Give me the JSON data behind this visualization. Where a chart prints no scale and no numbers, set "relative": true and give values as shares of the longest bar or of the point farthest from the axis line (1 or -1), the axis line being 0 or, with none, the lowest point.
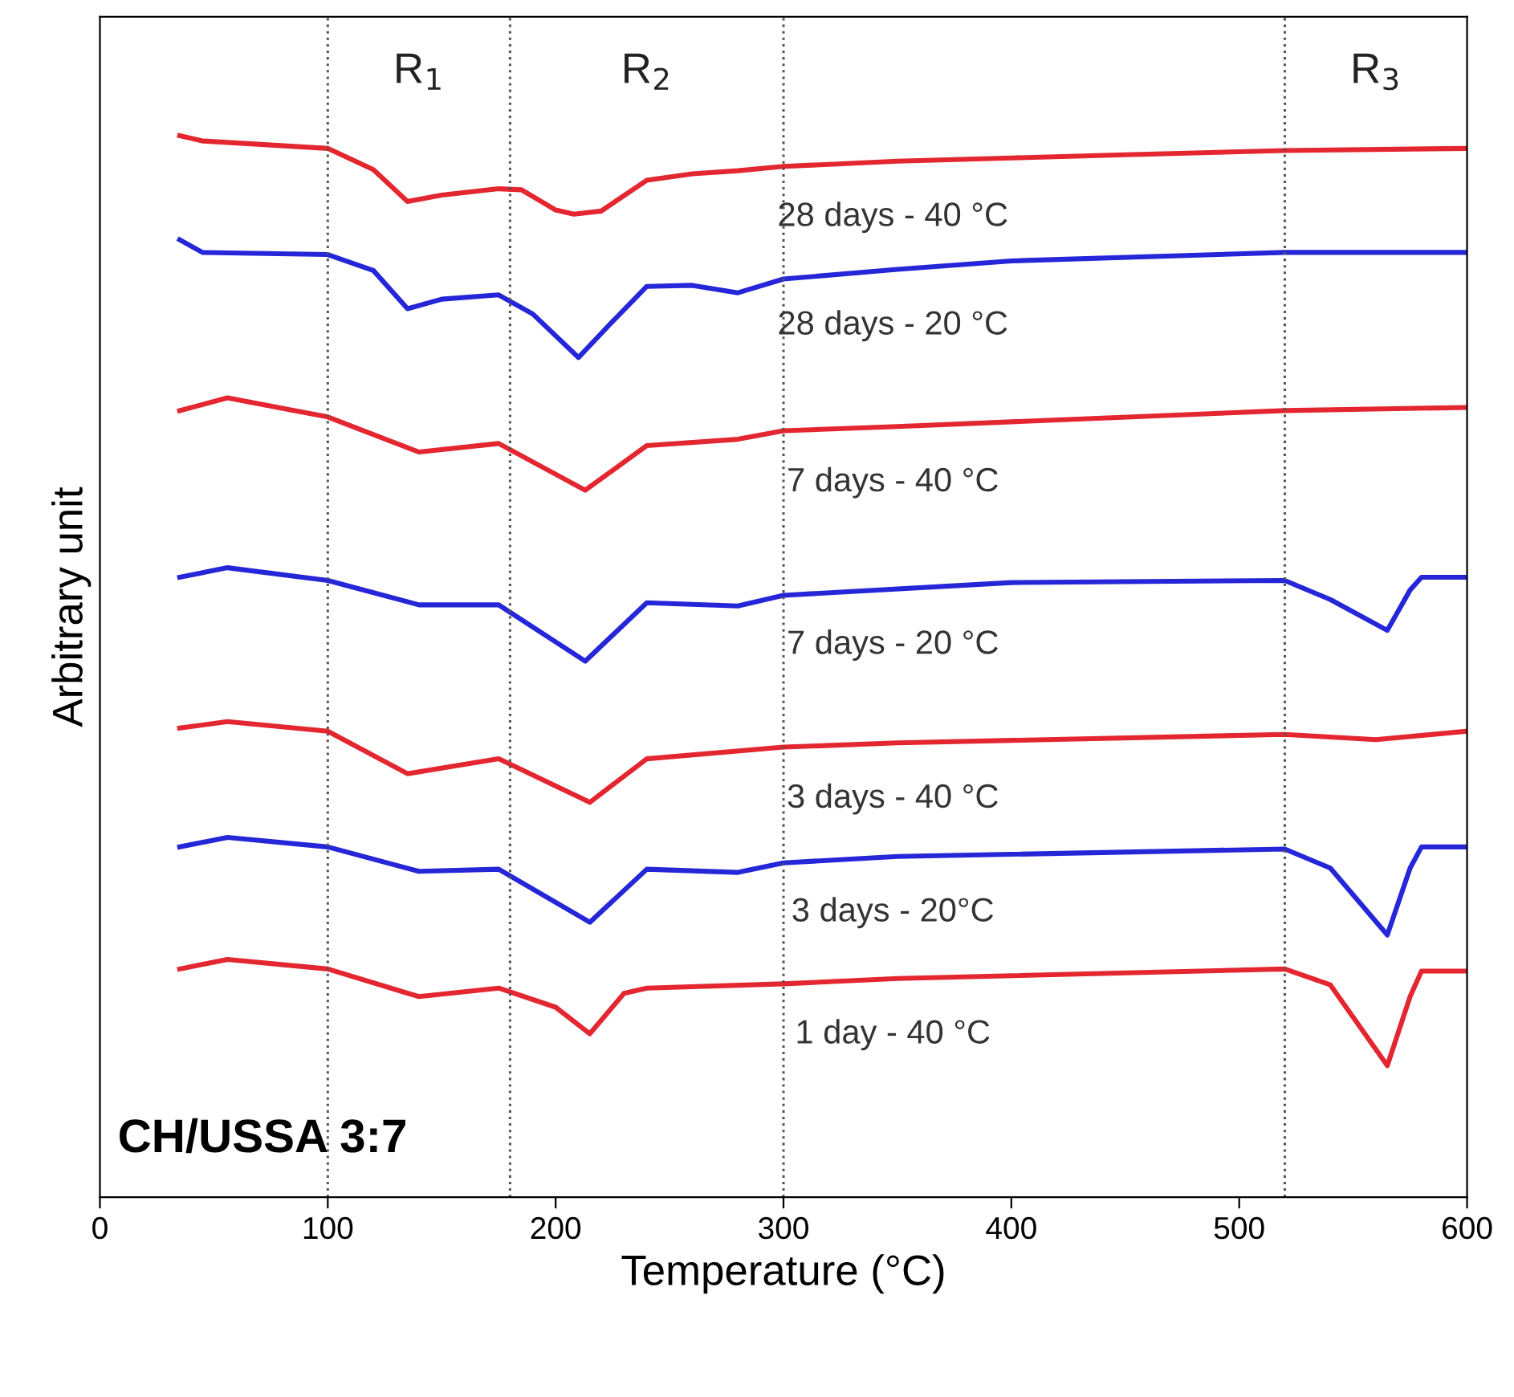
{
  "chart_data": {
    "type": "line",
    "relative": true,
    "xlabel": "Temperature (°C)",
    "ylabel": "Arbitrary unit",
    "xlim": [
      0,
      600
    ],
    "xticks": [
      0,
      100,
      200,
      300,
      400,
      500,
      600
    ],
    "tick_labels": "x",
    "grid": false,
    "legend": false,
    "line_style": "solid",
    "marker": "none",
    "ref_lines": [
      {
        "axis": "x",
        "value": 100,
        "color": "#555555",
        "line_style": "dotted"
      },
      {
        "axis": "x",
        "value": 180,
        "color": "#555555",
        "line_style": "dotted"
      },
      {
        "axis": "x",
        "value": 300,
        "color": "#555555",
        "line_style": "dotted"
      },
      {
        "axis": "x",
        "value": 520,
        "color": "#555555",
        "line_style": "dotted"
      }
    ],
    "annotations": [
      "R$_{1}$",
      "R$_{2}$",
      "R$_{3}$",
      "CH/USSA 3:7"
    ],
    "series": [
      {
        "name": "28 days - 40 °C",
        "color": "#e3262f",
        "x": [
          35,
          45,
          100,
          120,
          135,
          150,
          175,
          185,
          200,
          208,
          220,
          240,
          260,
          280,
          300,
          350,
          400,
          450,
          520,
          600
        ],
        "values": [
          1.0,
          0.995,
          0.988,
          0.968,
          0.938,
          0.944,
          0.95,
          0.949,
          0.93,
          0.926,
          0.929,
          0.958,
          0.964,
          0.967,
          0.971,
          0.976,
          0.979,
          0.982,
          0.986,
          0.988
        ]
      },
      {
        "name": "28 days - 20 °C",
        "color": "#2626d9",
        "x": [
          35,
          45,
          100,
          120,
          135,
          150,
          175,
          190,
          210,
          225,
          240,
          260,
          280,
          300,
          350,
          400,
          520,
          600
        ],
        "values": [
          0.902,
          0.89,
          0.888,
          0.873,
          0.837,
          0.846,
          0.85,
          0.832,
          0.791,
          0.825,
          0.858,
          0.859,
          0.852,
          0.865,
          0.874,
          0.882,
          0.89,
          0.89
        ]
      },
      {
        "name": "7 days - 40 °C",
        "color": "#e3262f",
        "x": [
          35,
          56,
          100,
          140,
          175,
          213,
          240,
          280,
          300,
          350,
          520,
          600
        ],
        "values": [
          0.741,
          0.753,
          0.735,
          0.702,
          0.71,
          0.666,
          0.708,
          0.714,
          0.722,
          0.726,
          0.741,
          0.744
        ]
      },
      {
        "name": "7 days - 20 °C",
        "color": "#2626d9",
        "x": [
          35,
          56,
          100,
          140,
          175,
          213,
          240,
          280,
          300,
          400,
          520,
          540,
          565,
          575,
          580,
          600
        ],
        "values": [
          0.584,
          0.593,
          0.581,
          0.558,
          0.558,
          0.505,
          0.56,
          0.557,
          0.567,
          0.579,
          0.581,
          0.563,
          0.534,
          0.572,
          0.584,
          0.584
        ]
      },
      {
        "name": "3 days - 40 °C",
        "color": "#e3262f",
        "x": [
          35,
          56,
          100,
          135,
          175,
          215,
          240,
          300,
          350,
          520,
          560,
          600
        ],
        "values": [
          0.442,
          0.448,
          0.439,
          0.399,
          0.413,
          0.372,
          0.413,
          0.424,
          0.428,
          0.436,
          0.431,
          0.439
        ]
      },
      {
        "name": "3 days - 20°C",
        "color": "#2626d9",
        "x": [
          35,
          56,
          100,
          140,
          175,
          215,
          240,
          280,
          300,
          350,
          520,
          540,
          565,
          575,
          580,
          600
        ],
        "values": [
          0.33,
          0.339,
          0.33,
          0.307,
          0.309,
          0.259,
          0.309,
          0.306,
          0.315,
          0.321,
          0.328,
          0.31,
          0.247,
          0.31,
          0.33,
          0.33
        ]
      },
      {
        "name": "1 day - 40 °C",
        "color": "#e3262f",
        "x": [
          35,
          56,
          100,
          140,
          175,
          200,
          215,
          230,
          240,
          300,
          350,
          520,
          540,
          565,
          575,
          580,
          600
        ],
        "values": [
          0.215,
          0.224,
          0.215,
          0.189,
          0.197,
          0.179,
          0.154,
          0.192,
          0.197,
          0.201,
          0.206,
          0.215,
          0.2,
          0.124,
          0.189,
          0.213,
          0.213
        ]
      }
    ]
  }
}
